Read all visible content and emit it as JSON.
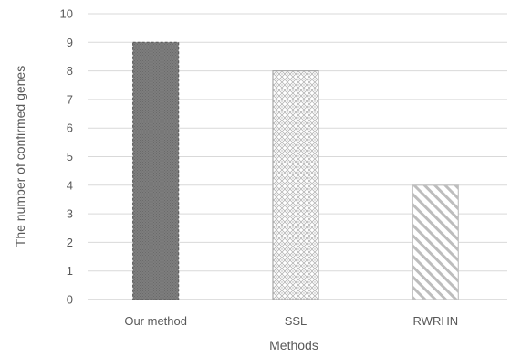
{
  "chart_data": {
    "type": "bar",
    "title": "",
    "xlabel": "Methods",
    "ylabel": "The number of confirmed genes",
    "categories": [
      "Our method",
      "SSL",
      "RWRHN"
    ],
    "values": [
      9,
      8,
      4
    ],
    "ylim": [
      0,
      10
    ],
    "yticks": [
      0,
      1,
      2,
      3,
      4,
      5,
      6,
      7,
      8,
      9,
      10
    ],
    "grid": true,
    "legend": "none",
    "bar_styles": [
      {
        "pattern": "dense-dots",
        "fill": "#7a7a7a",
        "stroke": "#5e5e5e",
        "stroke_dash": true
      },
      {
        "pattern": "crosshatch-diamond",
        "fill": "#ffffff",
        "stroke": "#a8a8a8",
        "stroke_dash": false
      },
      {
        "pattern": "diagonal-stripes",
        "fill": "#ffffff",
        "stroke": "#c2c2c2",
        "stroke_dash": false
      }
    ],
    "colors": {
      "grid": "#d9d9d9",
      "axis": "#bfbfbf",
      "text": "#595959"
    }
  }
}
